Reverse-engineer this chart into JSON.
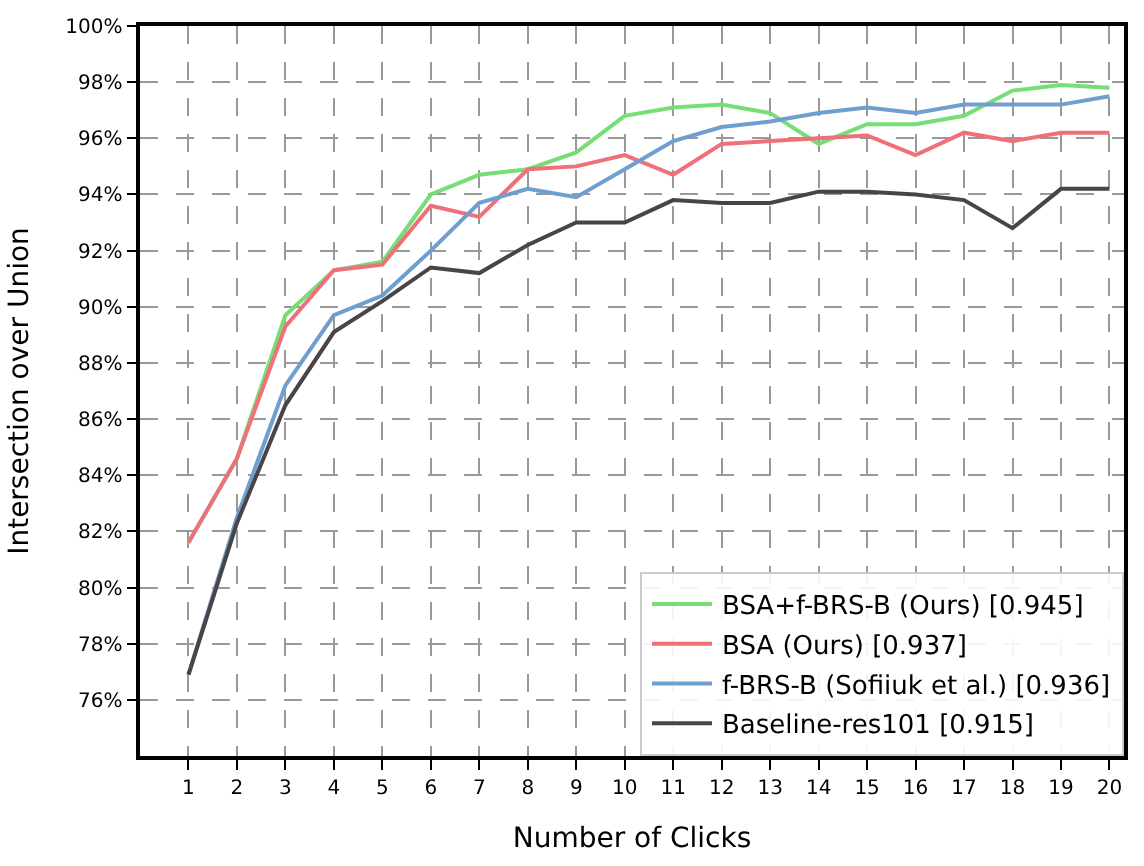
{
  "chart_data": {
    "type": "line",
    "xlabel": "Number of Clicks",
    "ylabel": "Intersection over Union",
    "x": [
      1,
      2,
      3,
      4,
      5,
      6,
      7,
      8,
      9,
      10,
      11,
      12,
      13,
      14,
      15,
      16,
      17,
      18,
      19,
      20
    ],
    "xlim": [
      0,
      20.3
    ],
    "xticks": [
      1,
      2,
      3,
      4,
      5,
      6,
      7,
      8,
      9,
      10,
      11,
      12,
      13,
      14,
      15,
      16,
      17,
      18,
      19,
      20
    ],
    "ylim": [
      74,
      100
    ],
    "yticks": [
      {
        "value": 76,
        "label": "76%"
      },
      {
        "value": 78,
        "label": "78%"
      },
      {
        "value": 80,
        "label": "80%"
      },
      {
        "value": 82,
        "label": "82%"
      },
      {
        "value": 84,
        "label": "84%"
      },
      {
        "value": 86,
        "label": "86%"
      },
      {
        "value": 88,
        "label": "88%"
      },
      {
        "value": 90,
        "label": "90%"
      },
      {
        "value": 92,
        "label": "92%"
      },
      {
        "value": 94,
        "label": "94%"
      },
      {
        "value": 96,
        "label": "96%"
      },
      {
        "value": 98,
        "label": "98%"
      },
      {
        "value": 100,
        "label": "100%"
      }
    ],
    "grid": true,
    "legend": "bottom right",
    "marker": "none",
    "line_style": "solid",
    "series": [
      {
        "name": "BSA+f-BRS-B (Ours) [0.945]",
        "color": "#77dd77",
        "values": [
          81.6,
          84.6,
          89.7,
          91.3,
          91.6,
          94.0,
          94.7,
          94.9,
          95.5,
          96.8,
          97.1,
          97.2,
          96.9,
          95.8,
          96.5,
          96.5,
          96.8,
          97.7,
          97.9,
          97.8
        ]
      },
      {
        "name": "BSA (Ours) [0.937]",
        "color": "#f0707a",
        "values": [
          81.6,
          84.6,
          89.3,
          91.3,
          91.5,
          93.6,
          93.2,
          94.9,
          95.0,
          95.4,
          94.7,
          95.8,
          95.9,
          96.0,
          96.1,
          95.4,
          96.2,
          95.9,
          96.2,
          96.2
        ]
      },
      {
        "name": "f-BRS-B (Sofiiuk et al.) [0.936]",
        "color": "#6f9fcf",
        "values": [
          76.9,
          82.5,
          87.2,
          89.7,
          90.4,
          92.0,
          93.7,
          94.2,
          93.9,
          94.9,
          95.9,
          96.4,
          96.6,
          96.9,
          97.1,
          96.9,
          97.2,
          97.2,
          97.2,
          97.5
        ]
      },
      {
        "name": "Baseline-res101 [0.915]",
        "color": "#4a4446",
        "values": [
          76.9,
          82.3,
          86.5,
          89.1,
          90.2,
          91.4,
          91.2,
          92.2,
          93.0,
          93.0,
          93.8,
          93.7,
          93.7,
          94.1,
          94.1,
          94.0,
          93.8,
          92.8,
          94.2,
          94.2
        ]
      }
    ]
  }
}
